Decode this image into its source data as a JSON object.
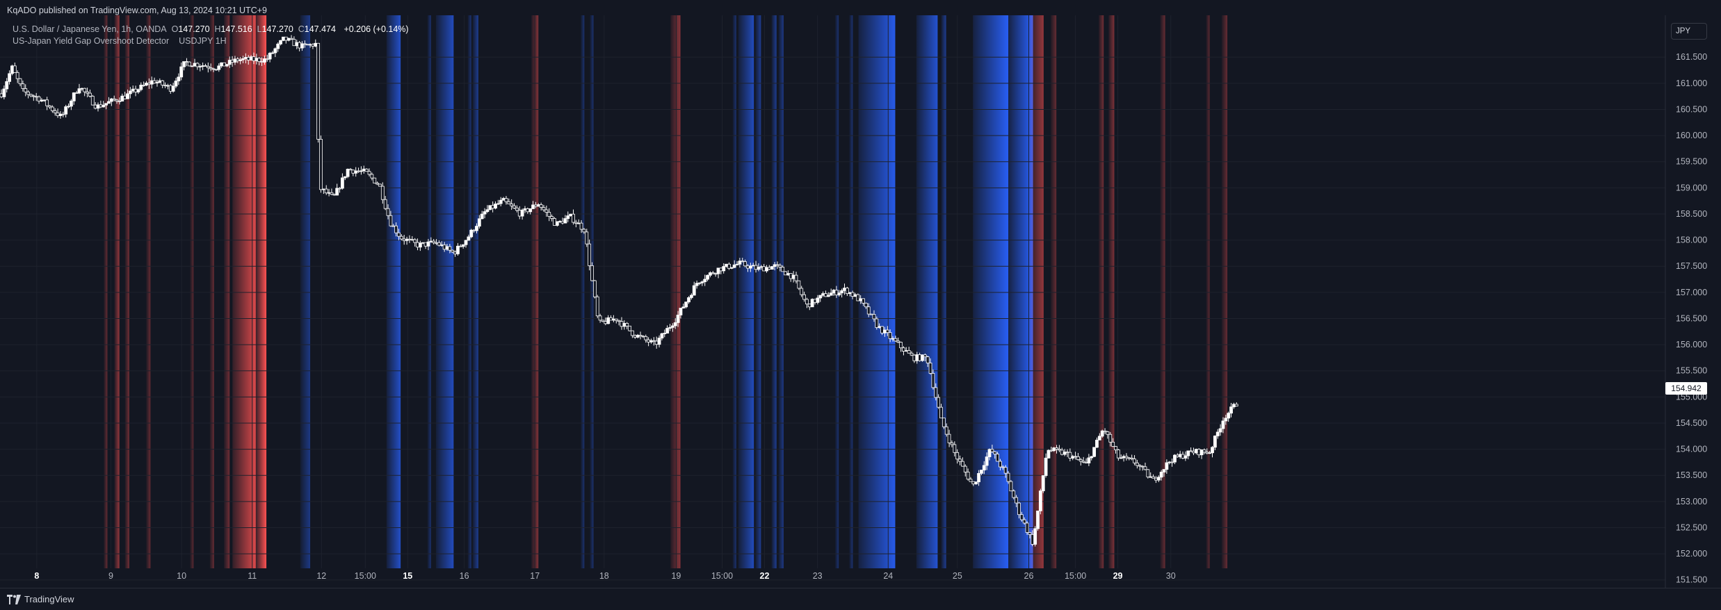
{
  "publisher": "KqADO published on TradingView.com, Aug 13, 2024 10:21 UTC+9",
  "legend": {
    "symbol": "U.S. Dollar / Japanese Yen, 1h, OANDA",
    "o_label": "O",
    "o": "147.270",
    "h_label": "H",
    "h": "147.516",
    "l_label": "L",
    "l": "147.270",
    "c_label": "C",
    "c": "147.474",
    "change": "+0.206 (+0.14%)"
  },
  "indicator": {
    "name": "US-Japan Yield Gap Overshoot Detector",
    "params": "USDJPY 1H"
  },
  "currency_button": "JPY",
  "last_price": "154.942",
  "footer": {
    "brand": "TradingView"
  },
  "colors": {
    "background": "#131722",
    "grid": "#1e222d",
    "candle": "#ffffff",
    "overshoot_high": "#ff5252",
    "overshoot_low": "#2962ff"
  },
  "chart_data": {
    "type": "candlestick",
    "title": "",
    "ylim": [
      151.35,
      162.3
    ],
    "y_ticks": [
      "161.500",
      "161.000",
      "160.500",
      "160.000",
      "159.500",
      "159.000",
      "158.500",
      "158.000",
      "157.500",
      "157.000",
      "156.500",
      "156.000",
      "155.500",
      "155.000",
      "154.500",
      "154.000",
      "153.500",
      "153.000",
      "152.500",
      "152.000",
      "151.500"
    ],
    "x_range_days": [
      7.45,
      30.95
    ],
    "x_ticks": [
      {
        "label": "8",
        "day": 7.95,
        "bold": true
      },
      {
        "label": "9",
        "day": 9.0,
        "bold": false
      },
      {
        "label": "10",
        "day": 10.0,
        "bold": false
      },
      {
        "label": "11",
        "day": 11.0,
        "bold": false
      },
      {
        "label": "12",
        "day": 11.98,
        "bold": false
      },
      {
        "label": "15:00",
        "day": 12.6,
        "bold": false
      },
      {
        "label": "15",
        "day": 13.2,
        "bold": true
      },
      {
        "label": "16",
        "day": 14.0,
        "bold": false
      },
      {
        "label": "17",
        "day": 15.0,
        "bold": false
      },
      {
        "label": "18",
        "day": 15.98,
        "bold": false
      },
      {
        "label": "19",
        "day": 17.0,
        "bold": false
      },
      {
        "label": "15:00",
        "day": 17.65,
        "bold": false
      },
      {
        "label": "22",
        "day": 18.25,
        "bold": true
      },
      {
        "label": "23",
        "day": 19.0,
        "bold": false
      },
      {
        "label": "24",
        "day": 20.0,
        "bold": false
      },
      {
        "label": "25",
        "day": 20.98,
        "bold": false
      },
      {
        "label": "26",
        "day": 21.99,
        "bold": false
      },
      {
        "label": "15:00",
        "day": 22.65,
        "bold": false
      },
      {
        "label": "29",
        "day": 23.25,
        "bold": true
      },
      {
        "label": "30",
        "day": 24.0,
        "bold": false
      }
    ],
    "path_keypoints": [
      [
        7.45,
        160.8
      ],
      [
        7.6,
        161.3
      ],
      [
        7.75,
        160.85
      ],
      [
        8.0,
        160.7
      ],
      [
        8.3,
        160.35
      ],
      [
        8.55,
        160.95
      ],
      [
        8.8,
        160.55
      ],
      [
        9.2,
        160.75
      ],
      [
        9.6,
        161.05
      ],
      [
        9.85,
        160.9
      ],
      [
        10.05,
        161.4
      ],
      [
        10.5,
        161.3
      ],
      [
        10.8,
        161.45
      ],
      [
        11.2,
        161.45
      ],
      [
        11.45,
        161.85
      ],
      [
        11.7,
        161.7
      ],
      [
        11.9,
        161.75
      ],
      [
        11.95,
        159.0
      ],
      [
        12.15,
        158.8
      ],
      [
        12.35,
        159.35
      ],
      [
        12.6,
        159.3
      ],
      [
        12.8,
        159.05
      ],
      [
        12.95,
        158.35
      ],
      [
        13.1,
        158.05
      ],
      [
        13.35,
        157.9
      ],
      [
        13.6,
        157.95
      ],
      [
        13.85,
        157.75
      ],
      [
        14.05,
        158.05
      ],
      [
        14.3,
        158.55
      ],
      [
        14.55,
        158.75
      ],
      [
        14.8,
        158.5
      ],
      [
        15.05,
        158.7
      ],
      [
        15.3,
        158.3
      ],
      [
        15.5,
        158.45
      ],
      [
        15.7,
        158.2
      ],
      [
        15.9,
        156.4
      ],
      [
        16.15,
        156.5
      ],
      [
        16.4,
        156.2
      ],
      [
        16.7,
        156.0
      ],
      [
        17.0,
        156.5
      ],
      [
        17.3,
        157.2
      ],
      [
        17.6,
        157.45
      ],
      [
        17.9,
        157.55
      ],
      [
        18.15,
        157.45
      ],
      [
        18.4,
        157.5
      ],
      [
        18.65,
        157.3
      ],
      [
        18.85,
        156.75
      ],
      [
        19.1,
        156.95
      ],
      [
        19.4,
        157.05
      ],
      [
        19.6,
        156.85
      ],
      [
        19.85,
        156.35
      ],
      [
        20.1,
        156.05
      ],
      [
        20.35,
        155.75
      ],
      [
        20.55,
        155.75
      ],
      [
        20.75,
        154.55
      ],
      [
        20.95,
        153.9
      ],
      [
        21.2,
        153.3
      ],
      [
        21.45,
        154.0
      ],
      [
        21.65,
        153.55
      ],
      [
        21.85,
        152.8
      ],
      [
        22.05,
        152.2
      ],
      [
        22.25,
        154.0
      ],
      [
        22.55,
        153.9
      ],
      [
        22.8,
        153.7
      ],
      [
        23.05,
        154.4
      ],
      [
        23.25,
        153.85
      ],
      [
        23.5,
        153.75
      ],
      [
        23.75,
        153.4
      ],
      [
        24.0,
        153.8
      ],
      [
        24.3,
        153.95
      ],
      [
        24.55,
        153.95
      ],
      [
        24.75,
        154.6
      ],
      [
        24.95,
        154.9
      ]
    ],
    "overshoot_bands": [
      {
        "from": 8.9,
        "to": 8.95,
        "side": "high",
        "intensity": 0.35
      },
      {
        "from": 9.05,
        "to": 9.12,
        "side": "high",
        "intensity": 0.55
      },
      {
        "from": 9.2,
        "to": 9.26,
        "side": "high",
        "intensity": 0.4
      },
      {
        "from": 9.5,
        "to": 9.56,
        "side": "high",
        "intensity": 0.35
      },
      {
        "from": 10.12,
        "to": 10.17,
        "side": "high",
        "intensity": 0.3
      },
      {
        "from": 10.4,
        "to": 10.46,
        "side": "high",
        "intensity": 0.35
      },
      {
        "from": 10.6,
        "to": 10.68,
        "side": "high",
        "intensity": 0.4
      },
      {
        "from": 10.72,
        "to": 11.05,
        "side": "high",
        "intensity": 0.85
      },
      {
        "from": 11.05,
        "to": 11.2,
        "side": "high",
        "intensity": 1.0
      },
      {
        "from": 11.68,
        "to": 11.82,
        "side": "low",
        "intensity": 0.45
      },
      {
        "from": 12.9,
        "to": 13.1,
        "side": "low",
        "intensity": 0.75
      },
      {
        "from": 13.48,
        "to": 13.53,
        "side": "low",
        "intensity": 0.35
      },
      {
        "from": 13.6,
        "to": 13.85,
        "side": "low",
        "intensity": 0.7
      },
      {
        "from": 14.05,
        "to": 14.1,
        "side": "low",
        "intensity": 0.35
      },
      {
        "from": 14.12,
        "to": 14.2,
        "side": "low",
        "intensity": 0.5
      },
      {
        "from": 14.95,
        "to": 15.05,
        "side": "high",
        "intensity": 0.45
      },
      {
        "from": 15.65,
        "to": 15.7,
        "side": "low",
        "intensity": 0.35
      },
      {
        "from": 15.78,
        "to": 15.83,
        "side": "low",
        "intensity": 0.35
      },
      {
        "from": 16.92,
        "to": 17.06,
        "side": "high",
        "intensity": 0.5
      },
      {
        "from": 17.8,
        "to": 17.85,
        "side": "low",
        "intensity": 0.35
      },
      {
        "from": 17.88,
        "to": 18.1,
        "side": "low",
        "intensity": 0.7
      },
      {
        "from": 18.12,
        "to": 18.2,
        "side": "low",
        "intensity": 0.5
      },
      {
        "from": 18.35,
        "to": 18.42,
        "side": "low",
        "intensity": 0.5
      },
      {
        "from": 18.45,
        "to": 18.52,
        "side": "low",
        "intensity": 0.45
      },
      {
        "from": 19.25,
        "to": 19.3,
        "side": "low",
        "intensity": 0.35
      },
      {
        "from": 19.45,
        "to": 19.5,
        "side": "low",
        "intensity": 0.35
      },
      {
        "from": 19.58,
        "to": 20.1,
        "side": "low",
        "intensity": 0.9
      },
      {
        "from": 20.4,
        "to": 20.7,
        "side": "low",
        "intensity": 0.8
      },
      {
        "from": 20.75,
        "to": 20.82,
        "side": "low",
        "intensity": 0.5
      },
      {
        "from": 21.2,
        "to": 21.7,
        "side": "low",
        "intensity": 0.95
      },
      {
        "from": 21.7,
        "to": 22.05,
        "side": "low",
        "intensity": 1.0
      },
      {
        "from": 22.0,
        "to": 22.2,
        "side": "high",
        "intensity": 0.55
      },
      {
        "from": 22.3,
        "to": 22.38,
        "side": "high",
        "intensity": 0.35
      },
      {
        "from": 22.98,
        "to": 23.05,
        "side": "high",
        "intensity": 0.4
      },
      {
        "from": 23.12,
        "to": 23.2,
        "side": "high",
        "intensity": 0.45
      },
      {
        "from": 23.85,
        "to": 23.92,
        "side": "high",
        "intensity": 0.35
      },
      {
        "from": 24.5,
        "to": 24.55,
        "side": "high",
        "intensity": 0.3
      },
      {
        "from": 24.72,
        "to": 24.8,
        "side": "high",
        "intensity": 0.35
      }
    ]
  }
}
